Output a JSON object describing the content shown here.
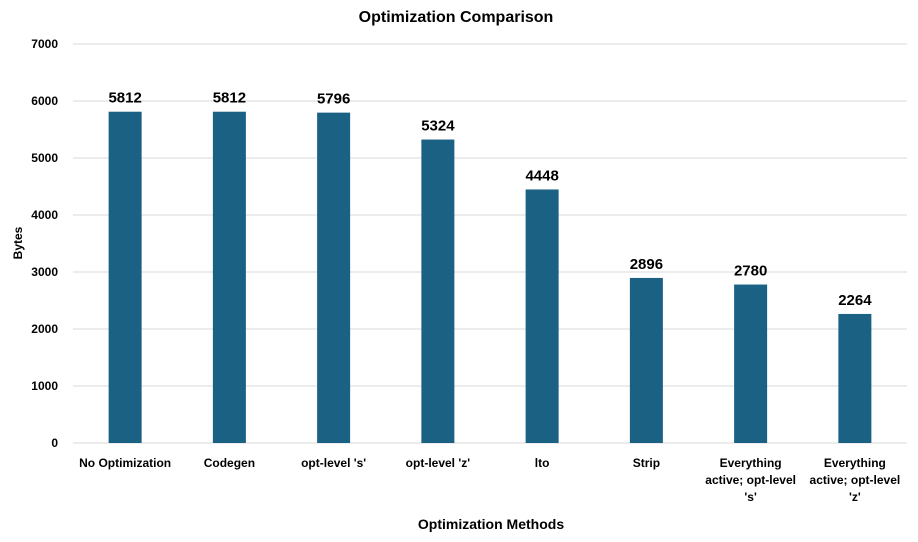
{
  "chart_data": {
    "type": "bar",
    "title": "Optimization Comparison",
    "xlabel": "Optimization Methods",
    "ylabel": "Bytes",
    "categories": [
      [
        "No Optimization"
      ],
      [
        "Codegen"
      ],
      [
        "opt-level 's'"
      ],
      [
        "opt-level 'z'"
      ],
      [
        "lto"
      ],
      [
        "Strip"
      ],
      [
        "Everything",
        "active; opt-level",
        "'s'"
      ],
      [
        "Everything",
        "active; opt-level",
        "'z'"
      ]
    ],
    "values": [
      5812,
      5812,
      5796,
      5324,
      4448,
      2896,
      2780,
      2264
    ],
    "ylim": [
      0,
      7000
    ],
    "yticks": [
      0,
      1000,
      2000,
      3000,
      4000,
      5000,
      6000,
      7000
    ],
    "grid": true,
    "data_labels": true,
    "bar_color": "#1a6184"
  }
}
